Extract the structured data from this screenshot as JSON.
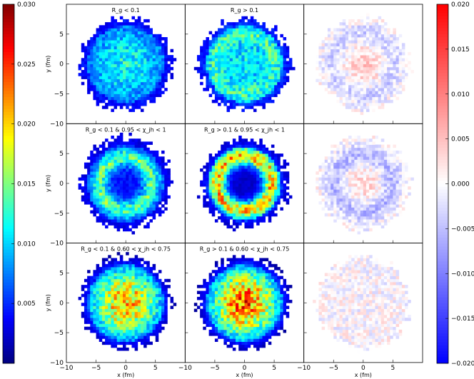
{
  "chart_data": {
    "type": "heatmap",
    "layout": {
      "rows": 3,
      "cols": 3
    },
    "xlabel": "x (fm)",
    "ylabel": "y (fm)",
    "xlim": [
      -10,
      10
    ],
    "ylim": [
      -10,
      10
    ],
    "xticks": [
      "−10",
      "−5",
      "0",
      "5"
    ],
    "yticks": [
      "5",
      "0",
      "−5",
      "−10"
    ],
    "bins": 40,
    "panel_titles": [
      [
        "R_g < 0.1",
        "R_g > 0.1",
        ""
      ],
      [
        "R_g < 0.1 & 0.95 < χ_jh < 1",
        "R_g > 0.1 & 0.95 < χ_jh < 1",
        ""
      ],
      [
        "R_g < 0.1 & 0.60 < χ_jh < 0.75",
        "R_g > 0.1 & 0.60 < χ_jh < 0.75",
        ""
      ]
    ],
    "panel_profiles": [
      [
        {
          "kind": "density",
          "radius_fm": 7.6,
          "center_value": 0.012,
          "edge_value": 0.006,
          "ring_radius_fm": 0,
          "ring_value": 0
        },
        {
          "kind": "density",
          "radius_fm": 7.6,
          "center_value": 0.011,
          "edge_value": 0.006,
          "ring_radius_fm": 5.0,
          "ring_value": 0.013
        },
        {
          "kind": "difference",
          "radius_fm": 7.6,
          "center_value": 0.004,
          "ring_radius_fm": 5.0,
          "ring_value": -0.004
        }
      ],
      [
        {
          "kind": "density",
          "radius_fm": 7.6,
          "center_value": 0.004,
          "edge_value": 0.005,
          "ring_radius_fm": 4.4,
          "ring_value": 0.014
        },
        {
          "kind": "density",
          "radius_fm": 7.3,
          "center_value": 0.002,
          "edge_value": 0.004,
          "ring_radius_fm": 4.6,
          "ring_value": 0.02
        },
        {
          "kind": "difference",
          "radius_fm": 7.6,
          "center_value": 0.003,
          "ring_radius_fm": 4.8,
          "ring_value": -0.006
        }
      ],
      [
        {
          "kind": "density",
          "radius_fm": 7.6,
          "center_value": 0.022,
          "edge_value": 0.004,
          "ring_radius_fm": 0,
          "ring_value": 0
        },
        {
          "kind": "density",
          "radius_fm": 7.6,
          "center_value": 0.024,
          "edge_value": 0.004,
          "ring_radius_fm": 0,
          "ring_value": 0
        },
        {
          "kind": "difference",
          "radius_fm": 7.6,
          "center_value": 0.0,
          "ring_radius_fm": 0,
          "ring_value": 0
        }
      ]
    ],
    "colorbars": [
      {
        "name": "density",
        "colormap": "jet",
        "range": [
          0,
          0.03
        ],
        "ticks": [
          "0.030",
          "0.025",
          "0.020",
          "0.015",
          "0.010",
          "0.005"
        ],
        "tick_values": [
          0.03,
          0.025,
          0.02,
          0.015,
          0.01,
          0.005
        ]
      },
      {
        "name": "difference",
        "colormap": "bwr",
        "range": [
          -0.02,
          0.02
        ],
        "ticks": [
          "0.020",
          "0.015",
          "0.010",
          "0.005",
          "0.000",
          "−0.005",
          "−0.010",
          "−0.015",
          "−0.020"
        ],
        "tick_values": [
          0.02,
          0.015,
          0.01,
          0.005,
          0,
          -0.005,
          -0.01,
          -0.015,
          -0.02
        ]
      }
    ]
  }
}
